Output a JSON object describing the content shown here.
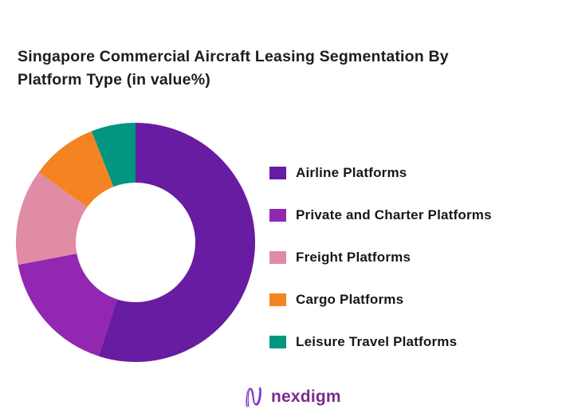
{
  "title": {
    "line1": "Singapore Commercial Aircraft Leasing Segmentation By",
    "line2": "Platform Type (in value%)"
  },
  "chart_data": {
    "type": "pie",
    "subtype": "donut",
    "hole_ratio": 0.5,
    "start_angle_deg": 0,
    "direction": "clockwise",
    "title": "Singapore Commercial Aircraft Leasing Segmentation By Platform Type (in value%)",
    "unit": "value %",
    "labels": [
      "Airline Platforms",
      "Private and Charter Platforms",
      "Freight Platforms",
      "Cargo Platforms",
      "Leisure Travel Platforms"
    ],
    "values": [
      55,
      17,
      13,
      9,
      6
    ],
    "colors": [
      "#681CA1",
      "#9227B2",
      "#E08CA4",
      "#F58321",
      "#029580"
    ],
    "legend_position": "right"
  },
  "legend": {
    "items": [
      {
        "label": "Airline Platforms"
      },
      {
        "label": "Private and Charter Platforms"
      },
      {
        "label": "Freight Platforms"
      },
      {
        "label": "Cargo Platforms"
      },
      {
        "label": "Leisure Travel Platforms"
      }
    ]
  },
  "footer": {
    "logo_text": "nexdigm"
  },
  "palette": {
    "title_color": "#1d1d20",
    "legend_text_color": "#17171b",
    "logo_color": "#7b2b8e",
    "background": "#ffffff"
  }
}
